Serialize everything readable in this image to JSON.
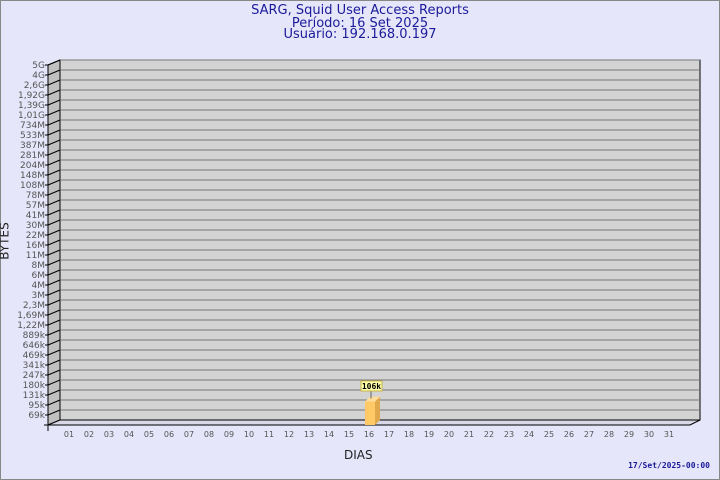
{
  "chart_data": {
    "type": "bar",
    "title": "SARG, Squid User Access Reports",
    "subtitle": [
      "Período: 16 Set 2025",
      "Usuário: 192.168.0.197"
    ],
    "xlabel": "DIAS",
    "ylabel": "BYTES",
    "y_scale": "log",
    "y_ticks": [
      "5G",
      "4G",
      "2,6G",
      "1,92G",
      "1,39G",
      "1,01G",
      "734M",
      "533M",
      "387M",
      "281M",
      "204M",
      "148M",
      "108M",
      "78M",
      "57M",
      "41M",
      "30M",
      "22M",
      "16M",
      "11M",
      "8M",
      "6M",
      "4M",
      "3M",
      "2,3M",
      "1,69M",
      "1,22M",
      "889k",
      "646k",
      "469k",
      "341k",
      "247k",
      "180k",
      "131k",
      "95k",
      "69k"
    ],
    "categories": [
      "01",
      "02",
      "03",
      "04",
      "05",
      "06",
      "07",
      "08",
      "09",
      "10",
      "11",
      "12",
      "13",
      "14",
      "15",
      "16",
      "17",
      "18",
      "19",
      "20",
      "21",
      "22",
      "23",
      "24",
      "25",
      "26",
      "27",
      "28",
      "29",
      "30",
      "31"
    ],
    "values": [
      {
        "day": "16",
        "value": 106000,
        "label": "106k"
      }
    ],
    "grid": true,
    "colors": {
      "bar": "#ffc966",
      "wall": "#d3d3d3",
      "background": "#e6e6fa",
      "title": "#1a1a9a"
    }
  },
  "footer": "17/Set/2025-00:00"
}
